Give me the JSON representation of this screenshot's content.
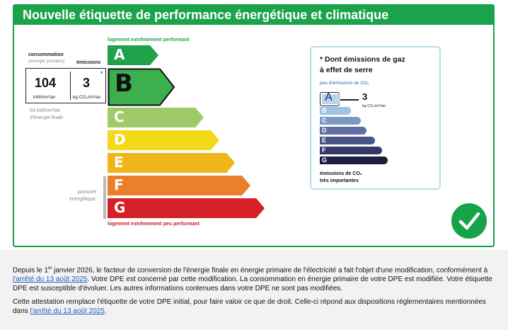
{
  "header": {
    "title": "Nouvelle étiquette de performance énergétique et climatique"
  },
  "energy": {
    "top_tag": "logement extrêmement performant",
    "bottom_tag": "logement extrêmement peu performant",
    "classes": [
      "A",
      "B",
      "C",
      "D",
      "E",
      "F",
      "G"
    ],
    "colors": [
      "#1ea24a",
      "#3cb04c",
      "#9ecb67",
      "#f4d81a",
      "#f0b619",
      "#ea7f2c",
      "#d42127"
    ],
    "current_class": "B",
    "consommation_label": "consommation",
    "consommation_sub": "(énergie primaire)",
    "emissions_label": "émissions",
    "consumption_value": "104",
    "consumption_unit": "kWh/m²/an",
    "emissions_value": "3",
    "emissions_unit": "kg CO₂/m²/an",
    "star": "*",
    "final_energy_line1": "54 kWh/m²/an",
    "final_energy_line2": "d'énergie finale",
    "passoire_line1": "passoire",
    "passoire_line2": "énergétique"
  },
  "ges": {
    "title_line1": "* Dont émissions de gaz",
    "title_line2": "à effet de serre",
    "top_label": "peu d'émissions de CO₂",
    "classes": [
      "A",
      "B",
      "C",
      "D",
      "E",
      "F",
      "G"
    ],
    "colors": [
      "#b9d6ee",
      "#9ec3e3",
      "#7c98c8",
      "#5f6fa3",
      "#4a5486",
      "#363a6a",
      "#1d1f42"
    ],
    "current_class": "A",
    "value": "3",
    "unit": "kg CO₂/m²/an",
    "bottom_line1": "émissions de CO₂",
    "bottom_line2": "très importantes"
  },
  "footer": {
    "p1_a": "Depuis le 1",
    "p1_sup": "er",
    "p1_b": " janvier 2026, le facteur de conversion de l'énergie finale en énergie primaire de l'électricité a fait l'objet d'une modification, conformément à ",
    "p1_link": "l'arrêté du 13 août 2025",
    "p1_c": ". Votre DPE est concerné par cette modification. La consommation en énergie primaire de votre DPE est modifiée. Votre étiquette DPE est susceptible d'évoluer. Les autres informations contenues dans votre DPE ne sont pas modifiées.",
    "p2_a": "Cette attestation remplace l'étiquette de votre DPE initial, pour faire valoir ce que de droit. Celle-ci répond aux dispositions réglementaires mentionnées dans ",
    "p2_link": "l'arrêté du 13 août 2025",
    "p2_b": "."
  }
}
